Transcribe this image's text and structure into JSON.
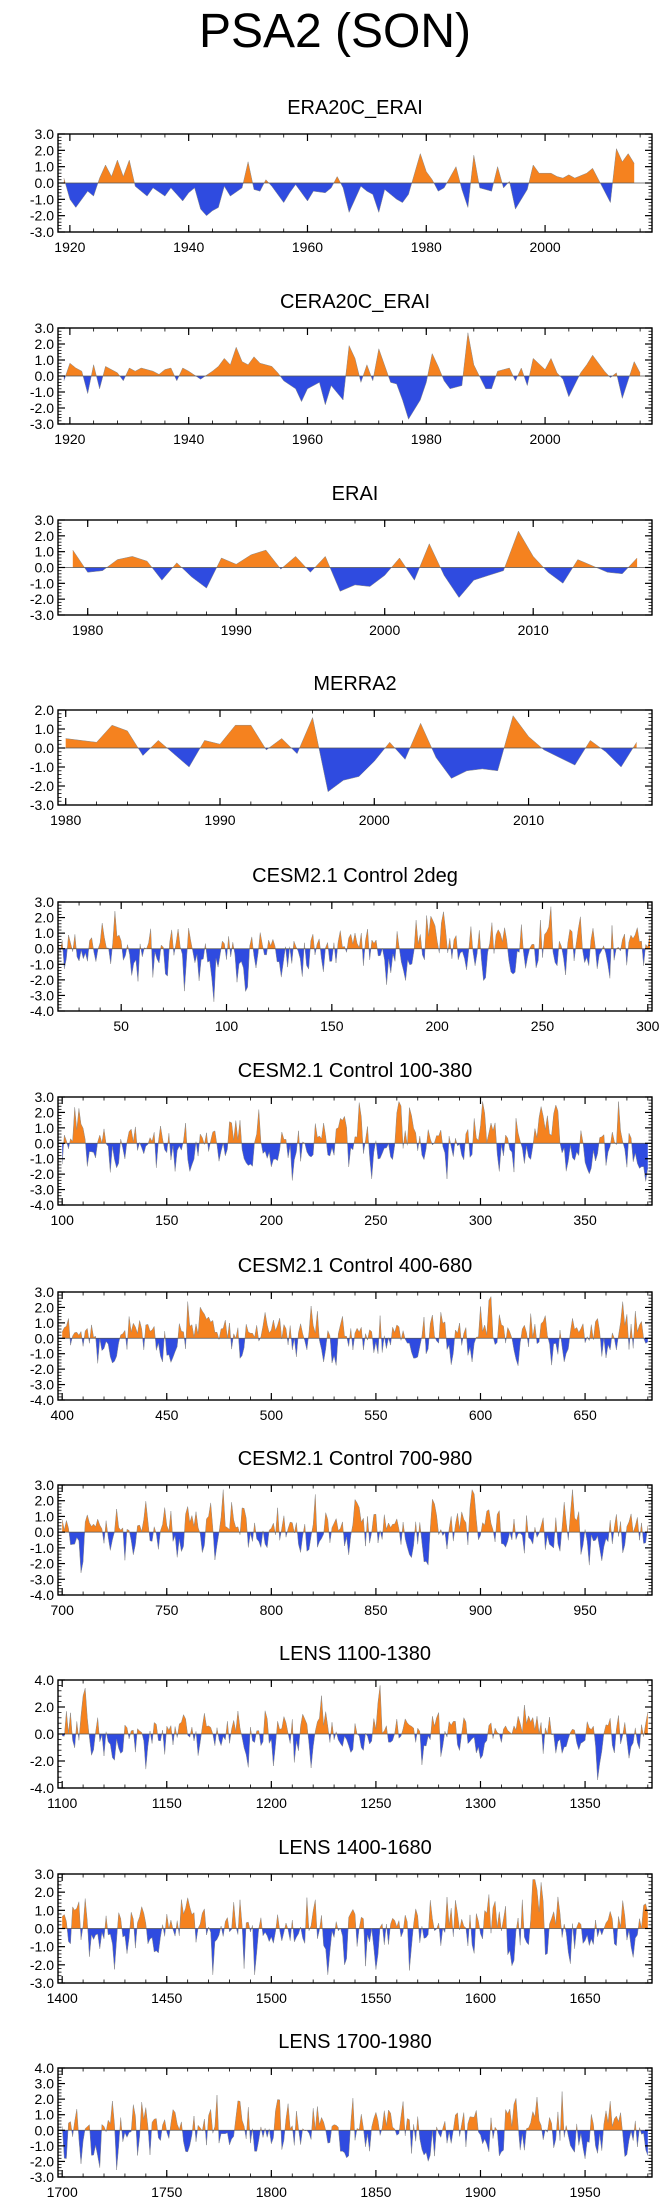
{
  "figure": {
    "title": "PSA2 (SON)"
  },
  "colors": {
    "positive": "#f5821f",
    "negative": "#2f4be0",
    "axis": "#000000"
  },
  "chart_data": [
    {
      "type": "area",
      "title": "ERA20C_ERAI",
      "xlim": [
        1918,
        2018
      ],
      "xticks": [
        1920,
        1940,
        1960,
        1980,
        2000
      ],
      "ylim": [
        -3,
        3
      ],
      "yticks": [
        3,
        2,
        1,
        0,
        -1,
        -2,
        -3
      ],
      "yfmt": 1,
      "x": [
        1919,
        1920,
        1921,
        1923,
        1924,
        1925,
        1926,
        1927,
        1928,
        1929,
        1930,
        1931,
        1933,
        1934,
        1936,
        1937,
        1939,
        1940,
        1941,
        1942,
        1943,
        1944,
        1945,
        1946,
        1947,
        1949,
        1950,
        1951,
        1952,
        1953,
        1954,
        1956,
        1957,
        1958,
        1960,
        1961,
        1963,
        1964,
        1965,
        1966,
        1967,
        1969,
        1970,
        1971,
        1972,
        1973,
        1975,
        1976,
        1977,
        1979,
        1980,
        1981,
        1982,
        1983,
        1985,
        1986,
        1987,
        1988,
        1989,
        1991,
        1992,
        1993,
        1994,
        1995,
        1997,
        1998,
        1999,
        2001,
        2002,
        2003,
        2004,
        2005,
        2007,
        2008,
        2010,
        2011,
        2012,
        2013,
        2014,
        2015
      ],
      "values": [
        0.3,
        -1.0,
        -1.5,
        -0.5,
        -0.8,
        0.3,
        1.1,
        0.4,
        1.4,
        0.4,
        1.4,
        -0.2,
        -0.8,
        -0.3,
        -0.8,
        -0.3,
        -1.1,
        -0.6,
        -0.3,
        -1.6,
        -2.0,
        -1.7,
        -1.5,
        -0.2,
        -0.8,
        -0.3,
        1.3,
        -0.4,
        -0.5,
        0.2,
        -0.2,
        -1.2,
        -0.6,
        -0.1,
        -1.1,
        -0.5,
        -0.6,
        -0.3,
        0.4,
        -0.3,
        -1.8,
        -0.2,
        -0.5,
        -0.7,
        -1.8,
        -0.4,
        -1.0,
        -1.2,
        -0.7,
        1.8,
        0.7,
        0.2,
        -0.5,
        -0.3,
        1.0,
        -0.4,
        -1.5,
        1.7,
        -0.3,
        -0.5,
        1.0,
        -0.3,
        0.1,
        -1.6,
        -0.4,
        1.1,
        0.6,
        0.6,
        0.4,
        0.3,
        0.5,
        0.3,
        0.6,
        0.9,
        -0.5,
        -1.2,
        2.1,
        1.3,
        1.8,
        1.2
      ]
    },
    {
      "type": "area",
      "title": "CERA20C_ERAI",
      "xlim": [
        1918,
        2018
      ],
      "xticks": [
        1920,
        1940,
        1960,
        1980,
        2000
      ],
      "ylim": [
        -3,
        3
      ],
      "yticks": [
        3,
        2,
        1,
        0,
        -1,
        -2,
        -3
      ],
      "yfmt": 1,
      "x": [
        1919,
        1920,
        1921,
        1922,
        1923,
        1924,
        1925,
        1926,
        1928,
        1929,
        1930,
        1931,
        1932,
        1934,
        1935,
        1936,
        1937,
        1938,
        1939,
        1940,
        1942,
        1944,
        1945,
        1946,
        1947,
        1948,
        1949,
        1950,
        1951,
        1952,
        1954,
        1955,
        1956,
        1958,
        1959,
        1960,
        1962,
        1963,
        1964,
        1966,
        1967,
        1968,
        1969,
        1970,
        1971,
        1972,
        1974,
        1975,
        1976,
        1977,
        1979,
        1980,
        1981,
        1982,
        1983,
        1984,
        1986,
        1987,
        1988,
        1990,
        1991,
        1992,
        1994,
        1995,
        1996,
        1997,
        1998,
        2000,
        2001,
        2002,
        2003,
        2004,
        2006,
        2007,
        2008,
        2010,
        2011,
        2012,
        2013,
        2015,
        2016
      ],
      "values": [
        -0.3,
        0.8,
        0.5,
        0.3,
        -1.1,
        0.7,
        -0.8,
        0.6,
        0.2,
        -0.3,
        0.5,
        0.3,
        0.5,
        0.3,
        0.1,
        0.4,
        0.5,
        -0.3,
        0.5,
        0.3,
        -0.2,
        0.3,
        0.6,
        1.1,
        0.7,
        1.8,
        0.9,
        0.7,
        1.2,
        0.8,
        0.6,
        0.2,
        -0.3,
        -0.8,
        -1.6,
        -0.8,
        -0.4,
        -1.8,
        -0.6,
        -1.5,
        1.9,
        1.1,
        -0.4,
        0.7,
        -0.3,
        1.7,
        -0.4,
        -0.5,
        -1.5,
        -2.7,
        -1.5,
        -0.4,
        1.4,
        0.6,
        -0.3,
        -0.8,
        -0.6,
        2.7,
        0.7,
        -0.8,
        -0.8,
        0.3,
        0.5,
        -0.3,
        0.5,
        -0.6,
        1.1,
        0.4,
        1.1,
        0.2,
        -0.2,
        -1.3,
        0.2,
        0.7,
        1.3,
        0.3,
        -0.1,
        0.2,
        -1.4,
        0.9,
        0.2
      ]
    },
    {
      "type": "area",
      "title": "ERAI",
      "xlim": [
        1978,
        2018
      ],
      "xticks": [
        1980,
        1990,
        2000,
        2010
      ],
      "ylim": [
        -3,
        3
      ],
      "yticks": [
        3,
        2,
        1,
        0,
        -1,
        -2,
        -3
      ],
      "yfmt": 1,
      "x": [
        1979,
        1980,
        1981,
        1982,
        1983,
        1984,
        1985,
        1986,
        1987,
        1988,
        1989,
        1990,
        1991,
        1992,
        1993,
        1994,
        1995,
        1996,
        1997,
        1998,
        1999,
        2000,
        2001,
        2002,
        2003,
        2004,
        2005,
        2006,
        2007,
        2008,
        2009,
        2010,
        2011,
        2012,
        2013,
        2014,
        2015,
        2016,
        2017
      ],
      "values": [
        1.1,
        -0.3,
        -0.2,
        0.5,
        0.7,
        0.4,
        -0.8,
        0.3,
        -0.6,
        -1.3,
        0.6,
        0.2,
        0.8,
        1.1,
        -0.1,
        0.7,
        -0.3,
        0.7,
        -1.5,
        -1.1,
        -1.2,
        -0.5,
        0.6,
        -0.8,
        1.5,
        -0.5,
        -1.9,
        -0.8,
        -0.5,
        -0.2,
        2.3,
        0.7,
        -0.3,
        -1.0,
        0.5,
        0.1,
        -0.3,
        -0.4,
        0.6
      ]
    },
    {
      "type": "area",
      "title": "MERRA2",
      "xlim": [
        1979.5,
        2018
      ],
      "xticks": [
        1980,
        1990,
        2000,
        2010
      ],
      "ylim": [
        -3,
        2
      ],
      "yticks": [
        2,
        1,
        0,
        -1,
        -2,
        -3
      ],
      "yfmt": 1,
      "x": [
        1980,
        1981,
        1982,
        1983,
        1984,
        1985,
        1986,
        1987,
        1988,
        1989,
        1990,
        1991,
        1992,
        1993,
        1994,
        1995,
        1996,
        1997,
        1998,
        1999,
        2000,
        2001,
        2002,
        2003,
        2004,
        2005,
        2006,
        2007,
        2008,
        2009,
        2010,
        2011,
        2012,
        2013,
        2014,
        2015,
        2016,
        2017
      ],
      "values": [
        0.5,
        0.4,
        0.3,
        1.2,
        0.9,
        -0.4,
        0.4,
        -0.3,
        -1.0,
        0.4,
        0.2,
        1.2,
        1.2,
        -0.1,
        0.5,
        -0.3,
        1.6,
        -2.3,
        -1.7,
        -1.5,
        -0.7,
        0.3,
        -0.6,
        1.3,
        -0.5,
        -1.6,
        -1.2,
        -1.1,
        -1.2,
        1.7,
        0.6,
        -0.1,
        -0.5,
        -0.9,
        0.4,
        -0.2,
        -1.0,
        0.3
      ]
    },
    {
      "type": "area",
      "title": "CESM2.1 Control 2deg",
      "random": true,
      "seed": 11,
      "xlim": [
        20,
        302
      ],
      "xticks": [
        50,
        100,
        150,
        200,
        250,
        300
      ],
      "ylim": [
        -4,
        3
      ],
      "yticks": [
        3,
        2,
        1,
        0,
        -1,
        -2,
        -3,
        -4
      ],
      "yfmt": 1,
      "range": [
        20,
        301
      ]
    },
    {
      "type": "area",
      "title": "CESM2.1 Control 100-380",
      "random": true,
      "seed": 23,
      "xlim": [
        98,
        382
      ],
      "xticks": [
        100,
        150,
        200,
        250,
        300,
        350
      ],
      "ylim": [
        -4,
        3
      ],
      "yticks": [
        3,
        2,
        1,
        0,
        -1,
        -2,
        -3,
        -4
      ],
      "yfmt": 1,
      "range": [
        100,
        380
      ]
    },
    {
      "type": "area",
      "title": "CESM2.1 Control 400-680",
      "random": true,
      "seed": 37,
      "xlim": [
        398,
        682
      ],
      "xticks": [
        400,
        450,
        500,
        550,
        600,
        650
      ],
      "ylim": [
        -4,
        3
      ],
      "yticks": [
        3,
        2,
        1,
        0,
        -1,
        -2,
        -3,
        -4
      ],
      "yfmt": 1,
      "range": [
        400,
        680
      ]
    },
    {
      "type": "area",
      "title": "CESM2.1 Control 700-980",
      "random": true,
      "seed": 41,
      "xlim": [
        698,
        982
      ],
      "xticks": [
        700,
        750,
        800,
        850,
        900,
        950
      ],
      "ylim": [
        -4,
        3
      ],
      "yticks": [
        3,
        2,
        1,
        0,
        -1,
        -2,
        -3,
        -4
      ],
      "yfmt": 1,
      "range": [
        700,
        980
      ]
    },
    {
      "type": "area",
      "title": "LENS 1100-1380",
      "random": true,
      "seed": 53,
      "xlim": [
        1098,
        1382
      ],
      "xticks": [
        1100,
        1150,
        1200,
        1250,
        1300,
        1350
      ],
      "ylim": [
        -4,
        4
      ],
      "yticks": [
        4,
        2,
        0,
        -2,
        -4
      ],
      "yfmt": 1,
      "range": [
        1100,
        1380
      ]
    },
    {
      "type": "area",
      "title": "LENS 1400-1680",
      "random": true,
      "seed": 67,
      "xlim": [
        1398,
        1682
      ],
      "xticks": [
        1400,
        1450,
        1500,
        1550,
        1600,
        1650
      ],
      "ylim": [
        -3,
        3
      ],
      "yticks": [
        3,
        2,
        1,
        0,
        -1,
        -2,
        -3
      ],
      "yfmt": 1,
      "range": [
        1400,
        1680
      ]
    },
    {
      "type": "area",
      "title": "LENS 1700-1980",
      "random": true,
      "seed": 79,
      "xlim": [
        1698,
        1982
      ],
      "xticks": [
        1700,
        1750,
        1800,
        1850,
        1900,
        1950
      ],
      "ylim": [
        -3,
        4
      ],
      "yticks": [
        4,
        3,
        2,
        1,
        0,
        -1,
        -2,
        -3
      ],
      "yfmt": 1,
      "range": [
        1700,
        1980
      ]
    }
  ]
}
